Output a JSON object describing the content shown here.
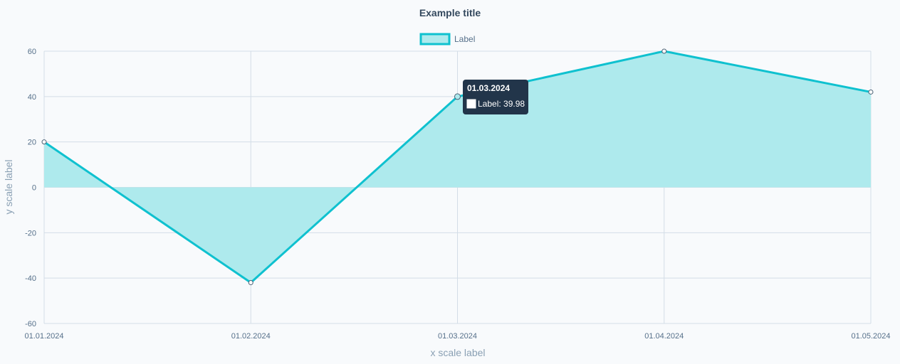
{
  "chart_data": {
    "type": "line",
    "title": "Example title",
    "xlabel": "x scale label",
    "ylabel": "y scale label",
    "categories": [
      "01.01.2024",
      "01.02.2024",
      "01.03.2024",
      "01.04.2024",
      "01.05.2024"
    ],
    "series": [
      {
        "name": "Label",
        "values": [
          20,
          -42,
          39.98,
          60,
          42
        ],
        "fill": true
      }
    ],
    "ylim": [
      -60,
      60
    ],
    "yticks": [
      60,
      40,
      20,
      0,
      -20,
      -40,
      -60
    ],
    "grid": true,
    "legend": "top-center",
    "colors": {
      "line": "#0fc1cf",
      "fill": "#aeeaed",
      "tooltip_bg": "#22354a"
    },
    "tooltip": {
      "title": "01.03.2024",
      "body": "Label: 39.98",
      "index": 2
    }
  }
}
